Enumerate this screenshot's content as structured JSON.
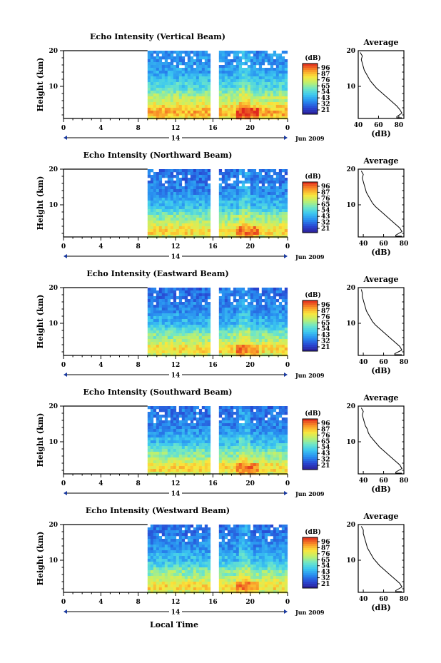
{
  "figure": {
    "xlabel": "Local Time",
    "date_label": "Jun 2009",
    "day_label": "14",
    "height_label": "Height (km)",
    "avg_title": "Average",
    "avg_xlabel": "(dB)",
    "colorbar_unit": "(dB)"
  },
  "chart_data": [
    {
      "type": "heatmap",
      "title": "Echo Intensity (Vertical Beam)",
      "xlabel": "Local Time",
      "ylabel": "Height (km)",
      "x_ticks": [
        "0",
        "4",
        "8",
        "12",
        "16",
        "20",
        "0"
      ],
      "y_ticks": [
        "10",
        "20"
      ],
      "xlim": [
        0,
        24
      ],
      "ylim": [
        1,
        20
      ],
      "data_start_hour": 9,
      "data_gap_hours": [
        15.9,
        16.4
      ],
      "colorbar": {
        "unit": "(dB)",
        "ticks": [
          "96",
          "87",
          "76",
          "65",
          "54",
          "43",
          "32",
          "21"
        ],
        "range": [
          21,
          96
        ]
      },
      "average_profile": {
        "title": "Average",
        "xlabel": "(dB)",
        "x_ticks": [
          "40",
          "60",
          "80"
        ],
        "y_ticks": [
          "10",
          "20"
        ],
        "xlim": [
          40,
          85
        ],
        "heights": [
          1.5,
          2.5,
          3.5,
          4.5,
          5.5,
          6.5,
          7.5,
          8.5,
          9.5,
          10.5,
          11.5,
          12.5,
          13.5,
          14.5,
          15.5,
          16.5,
          17.5,
          18.5,
          19.5
        ],
        "values": [
          78,
          83,
          81,
          78,
          74,
          70,
          66,
          62,
          58,
          55,
          52,
          50,
          48,
          46,
          45,
          44,
          43,
          44,
          42
        ]
      }
    },
    {
      "type": "heatmap",
      "title": "Echo Intensity (Northward Beam)",
      "xlabel": "Local Time",
      "ylabel": "Height (km)",
      "x_ticks": [
        "0",
        "4",
        "8",
        "12",
        "16",
        "20",
        "0"
      ],
      "y_ticks": [
        "10",
        "20"
      ],
      "xlim": [
        0,
        24
      ],
      "ylim": [
        1,
        20
      ],
      "data_start_hour": 9,
      "data_gap_hours": [
        15.9,
        16.4
      ],
      "colorbar": {
        "unit": "(dB)",
        "ticks": [
          "96",
          "87",
          "76",
          "65",
          "54",
          "43",
          "32",
          "21"
        ],
        "range": [
          21,
          96
        ]
      },
      "average_profile": {
        "title": "Average",
        "xlabel": "(dB)",
        "x_ticks": [
          "40",
          "60",
          "80"
        ],
        "y_ticks": [
          "10",
          "20"
        ],
        "xlim": [
          35,
          80
        ],
        "heights": [
          1.5,
          2.5,
          3.5,
          4.5,
          5.5,
          6.5,
          7.5,
          8.5,
          9.5,
          10.5,
          11.5,
          12.5,
          13.5,
          14.5,
          15.5,
          16.5,
          17.5,
          18.5,
          19.5
        ],
        "values": [
          72,
          78,
          76,
          72,
          68,
          64,
          60,
          56,
          52,
          49,
          47,
          45,
          43,
          42,
          41,
          40,
          39,
          40,
          38
        ]
      }
    },
    {
      "type": "heatmap",
      "title": "Echo Intensity (Eastward Beam)",
      "xlabel": "Local Time",
      "ylabel": "Height (km)",
      "x_ticks": [
        "0",
        "4",
        "8",
        "12",
        "16",
        "20",
        "0"
      ],
      "y_ticks": [
        "10",
        "20"
      ],
      "xlim": [
        0,
        24
      ],
      "ylim": [
        1,
        20
      ],
      "data_start_hour": 9,
      "data_gap_hours": [
        15.9,
        16.4
      ],
      "colorbar": {
        "unit": "(dB)",
        "ticks": [
          "96",
          "87",
          "76",
          "65",
          "54",
          "43",
          "32",
          "21"
        ],
        "range": [
          21,
          96
        ]
      },
      "average_profile": {
        "title": "Average",
        "xlabel": "(dB)",
        "x_ticks": [
          "40",
          "60",
          "80"
        ],
        "y_ticks": [
          "10",
          "20"
        ],
        "xlim": [
          35,
          80
        ],
        "heights": [
          1.5,
          2.5,
          3.5,
          4.5,
          5.5,
          6.5,
          7.5,
          8.5,
          9.5,
          10.5,
          11.5,
          12.5,
          13.5,
          14.5,
          15.5,
          16.5,
          17.5,
          18.5,
          19.5
        ],
        "values": [
          71,
          78,
          76,
          72,
          68,
          64,
          60,
          56,
          52,
          49,
          47,
          45,
          43,
          42,
          41,
          40,
          39,
          39,
          38
        ]
      }
    },
    {
      "type": "heatmap",
      "title": "Echo Intensity (Southward Beam)",
      "xlabel": "Local Time",
      "ylabel": "Height (km)",
      "x_ticks": [
        "0",
        "4",
        "8",
        "12",
        "16",
        "20",
        "0"
      ],
      "y_ticks": [
        "10",
        "20"
      ],
      "xlim": [
        0,
        24
      ],
      "ylim": [
        1,
        20
      ],
      "data_start_hour": 9,
      "data_gap_hours": [
        15.9,
        16.4
      ],
      "colorbar": {
        "unit": "(dB)",
        "ticks": [
          "96",
          "87",
          "76",
          "65",
          "54",
          "43",
          "32",
          "21"
        ],
        "range": [
          21,
          96
        ]
      },
      "average_profile": {
        "title": "Average",
        "xlabel": "(dB)",
        "x_ticks": [
          "40",
          "60",
          "80"
        ],
        "y_ticks": [
          "10",
          "20"
        ],
        "xlim": [
          35,
          80
        ],
        "heights": [
          1.5,
          2.5,
          3.5,
          4.5,
          5.5,
          6.5,
          7.5,
          8.5,
          9.5,
          10.5,
          11.5,
          12.5,
          13.5,
          14.5,
          15.5,
          16.5,
          17.5,
          18.5,
          19.5
        ],
        "values": [
          72,
          78,
          76,
          72,
          68,
          64,
          60,
          56,
          53,
          50,
          47,
          45,
          44,
          42,
          41,
          40,
          39,
          40,
          38
        ]
      }
    },
    {
      "type": "heatmap",
      "title": "Echo Intensity (Westward Beam)",
      "xlabel": "Local Time",
      "ylabel": "Height (km)",
      "x_ticks": [
        "0",
        "4",
        "8",
        "12",
        "16",
        "20",
        "0"
      ],
      "y_ticks": [
        "10",
        "20"
      ],
      "xlim": [
        0,
        24
      ],
      "ylim": [
        1,
        20
      ],
      "data_start_hour": 9,
      "data_gap_hours": [
        15.9,
        16.4
      ],
      "colorbar": {
        "unit": "(dB)",
        "ticks": [
          "96",
          "87",
          "76",
          "65",
          "54",
          "43",
          "32",
          "21"
        ],
        "range": [
          21,
          96
        ]
      },
      "average_profile": {
        "title": "Average",
        "xlabel": "(dB)",
        "x_ticks": [
          "40",
          "60",
          "80"
        ],
        "y_ticks": [
          "10",
          "20"
        ],
        "xlim": [
          35,
          80
        ],
        "heights": [
          1.5,
          2.5,
          3.5,
          4.5,
          5.5,
          6.5,
          7.5,
          8.5,
          9.5,
          10.5,
          11.5,
          12.5,
          13.5,
          14.5,
          15.5,
          16.5,
          17.5,
          18.5,
          19.5
        ],
        "values": [
          72,
          78,
          76,
          72,
          68,
          64,
          60,
          56,
          53,
          50,
          48,
          46,
          44,
          43,
          42,
          41,
          40,
          40,
          38
        ]
      }
    }
  ]
}
